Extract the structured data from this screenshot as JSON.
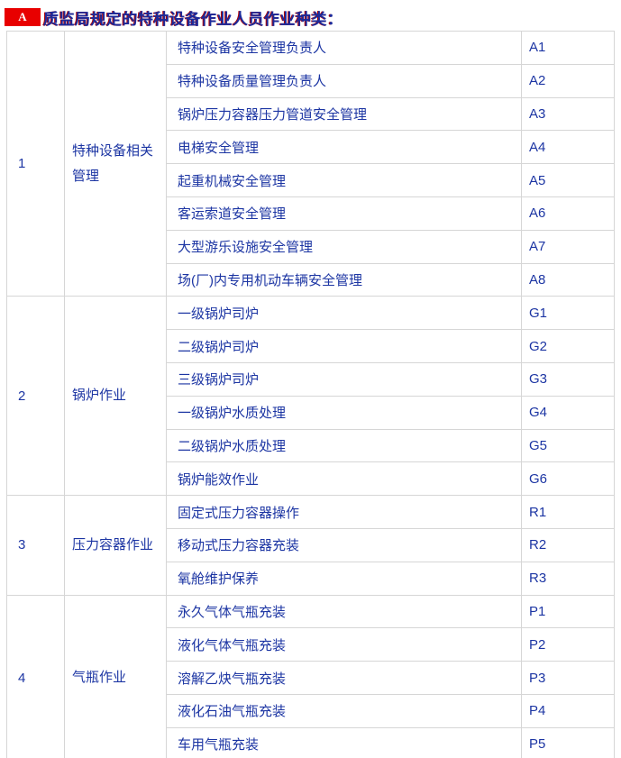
{
  "page": {
    "badge": "A",
    "title": "质监局规定的特种设备作业人员作业种类："
  },
  "colors": {
    "badge_bg": "#e80000",
    "badge_fg": "#ffffff",
    "title_blue": "#1b2a9b",
    "title_red_fringe": "#b40000",
    "table_text": "#1c35a3",
    "border": "#d6d6d6",
    "background": "#ffffff"
  },
  "table": {
    "sections": [
      {
        "no": "1",
        "category": "特种设备相关管理",
        "rows": [
          {
            "job": "特种设备安全管理负责人",
            "code": "A1"
          },
          {
            "job": "特种设备质量管理负责人",
            "code": "A2"
          },
          {
            "job": "锅炉压力容器压力管道安全管理",
            "code": "A3"
          },
          {
            "job": "电梯安全管理",
            "code": "A4"
          },
          {
            "job": "起重机械安全管理",
            "code": "A5"
          },
          {
            "job": "客运索道安全管理",
            "code": "A6"
          },
          {
            "job": "大型游乐设施安全管理",
            "code": "A7"
          },
          {
            "job": "场(厂)内专用机动车辆安全管理",
            "code": "A8"
          }
        ]
      },
      {
        "no": "2",
        "category": "锅炉作业",
        "rows": [
          {
            "job": "一级锅炉司炉",
            "code": "G1"
          },
          {
            "job": "二级锅炉司炉",
            "code": "G2"
          },
          {
            "job": "三级锅炉司炉",
            "code": "G3"
          },
          {
            "job": "一级锅炉水质处理",
            "code": "G4"
          },
          {
            "job": "二级锅炉水质处理",
            "code": "G5"
          },
          {
            "job": "锅炉能效作业",
            "code": "G6"
          }
        ]
      },
      {
        "no": "3",
        "category": "压力容器作业",
        "rows": [
          {
            "job": "固定式压力容器操作",
            "code": "R1"
          },
          {
            "job": "移动式压力容器充装",
            "code": "R2"
          },
          {
            "job": "氧舱维护保养",
            "code": "R3"
          }
        ]
      },
      {
        "no": "4",
        "category": "气瓶作业",
        "rows": [
          {
            "job": "永久气体气瓶充装",
            "code": "P1"
          },
          {
            "job": "液化气体气瓶充装",
            "code": "P2"
          },
          {
            "job": "溶解乙炔气瓶充装",
            "code": "P3"
          },
          {
            "job": "液化石油气瓶充装",
            "code": "P4"
          },
          {
            "job": "车用气瓶充装",
            "code": "P5"
          }
        ]
      }
    ]
  }
}
